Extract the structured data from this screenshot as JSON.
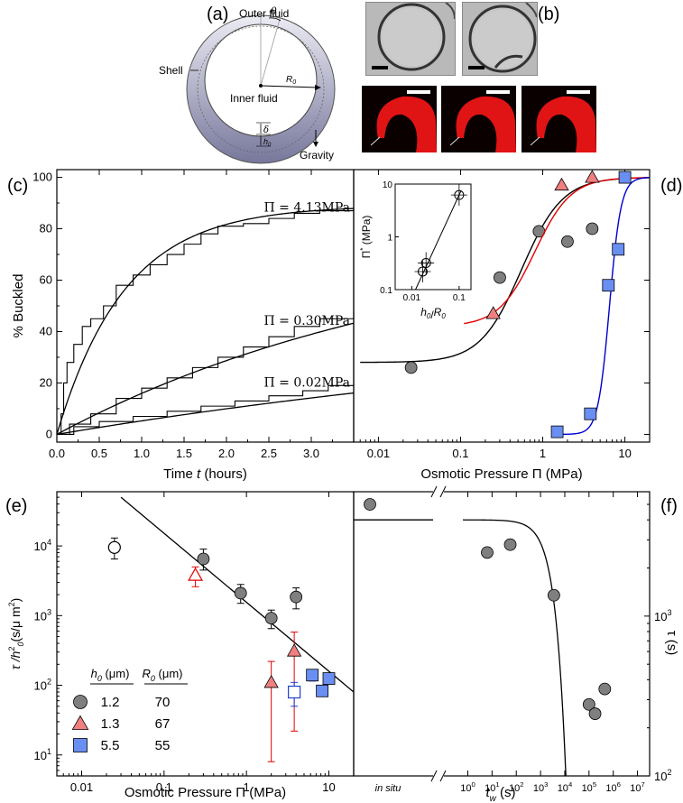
{
  "chart_data": [
    {
      "panel": "a",
      "type": "diagram",
      "label": "(a)",
      "annotations": {
        "outer_fluid": "Outer fluid",
        "shell": "Shell",
        "inner_fluid": "Inner fluid",
        "radius": "R",
        "radius_sub": "0",
        "delta": "δ",
        "h": "h",
        "h_sub": "0",
        "gravity": "Gravity",
        "theta": "θ"
      }
    },
    {
      "panel": "b",
      "type": "image",
      "label": "(b)",
      "arrow": "→"
    },
    {
      "panel": "c",
      "type": "line",
      "label": "(c)",
      "xlabel_pre": "Time ",
      "xlabel_var": "t",
      "xlabel_post": " (hours)",
      "ylabel": "% Buckled",
      "xlim": [
        0,
        3.5
      ],
      "ylim": [
        -3,
        103
      ],
      "xticks": [
        "0.0",
        "0.5",
        "1.0",
        "1.5",
        "2.0",
        "2.5",
        "3.0"
      ],
      "yticks": [
        "0",
        "20",
        "40",
        "60",
        "80",
        "100"
      ],
      "series": [
        {
          "name": "Π = 4.13MPa",
          "fit_tau_hours": 0.8,
          "fit_max": 89,
          "steps": [
            [
              0,
              0
            ],
            [
              0.05,
              8
            ],
            [
              0.08,
              20
            ],
            [
              0.12,
              28
            ],
            [
              0.2,
              35
            ],
            [
              0.3,
              42
            ],
            [
              0.4,
              45
            ],
            [
              0.55,
              50
            ],
            [
              0.7,
              58
            ],
            [
              0.9,
              62
            ],
            [
              1.1,
              66
            ],
            [
              1.3,
              70
            ],
            [
              1.5,
              74
            ],
            [
              1.7,
              78
            ],
            [
              1.9,
              81
            ],
            [
              2.2,
              82
            ],
            [
              2.5,
              84
            ],
            [
              2.8,
              86
            ],
            [
              3.1,
              87
            ],
            [
              3.5,
              88
            ]
          ]
        },
        {
          "name": "Π = 0.30MPa",
          "fit_tau_hours": 4.5,
          "fit_max": 80,
          "steps": [
            [
              0,
              0
            ],
            [
              0.15,
              4
            ],
            [
              0.4,
              8
            ],
            [
              0.7,
              14
            ],
            [
              1.0,
              18
            ],
            [
              1.3,
              22
            ],
            [
              1.6,
              26
            ],
            [
              1.9,
              30
            ],
            [
              2.2,
              34
            ],
            [
              2.5,
              38
            ],
            [
              2.8,
              42
            ],
            [
              3.1,
              45
            ],
            [
              3.5,
              48
            ]
          ]
        },
        {
          "name": "Π = 0.02MPa",
          "fit_tau_hours": 9.0,
          "fit_max": 50,
          "steps": [
            [
              0,
              0
            ],
            [
              0.2,
              3
            ],
            [
              0.5,
              5
            ],
            [
              0.9,
              7
            ],
            [
              1.3,
              9
            ],
            [
              1.7,
              11
            ],
            [
              2.1,
              13
            ],
            [
              2.5,
              15
            ],
            [
              2.9,
              17
            ],
            [
              3.2,
              19
            ],
            [
              3.5,
              20
            ]
          ]
        }
      ]
    },
    {
      "panel": "d",
      "type": "scatter",
      "label": "(d)",
      "xlabel": "Osmotic Pressure Π (MPa)",
      "xscale": "log",
      "xlim": [
        0.005,
        20
      ],
      "ylim": [
        -3,
        103
      ],
      "xticks": [
        "0.01",
        "0.1",
        "1",
        "10"
      ],
      "series": [
        {
          "name": "h0 1.2",
          "marker": "circle",
          "color": "#7f7f7f",
          "curve_color": "#000000",
          "x": [
            0.025,
            0.3,
            0.9,
            2.0,
            4.0
          ],
          "y": [
            26,
            61,
            79,
            75,
            80
          ],
          "fit": {
            "x0": 0.55,
            "width_decades": 0.25,
            "min": 28
          }
        },
        {
          "name": "h0 1.3",
          "marker": "triangle",
          "color": "#f08080",
          "curve_color": "#e00000",
          "x": [
            0.25,
            1.7,
            4.0
          ],
          "y": [
            47,
            97,
            100
          ],
          "fit": {
            "x0": 0.8,
            "width_decades": 0.22,
            "min": 42
          }
        },
        {
          "name": "h0 5.5",
          "marker": "square",
          "color": "#6a8ff2",
          "curve_color": "#0000d0",
          "x": [
            1.5,
            3.8,
            6.3,
            8.3,
            10.0
          ],
          "y": [
            1,
            8,
            58,
            72,
            100
          ],
          "fit": {
            "x0": 6.5,
            "width_decades": 0.07,
            "min": 0
          }
        }
      ],
      "inset": {
        "xlabel_var": "h",
        "xlabel_sub": "0",
        "xlabel_slash": "/",
        "xlabel_var2": "R",
        "xlabel_sub2": "0",
        "ylabel_var": "Π",
        "ylabel_sup": "*",
        "ylabel_unit": "(MPa)",
        "xticks": [
          "0.01",
          "0.1"
        ],
        "yticks": [
          "0.1",
          "1",
          "10"
        ],
        "x": [
          0.017,
          0.02,
          0.1
        ],
        "y": [
          0.22,
          0.32,
          6.2
        ]
      }
    },
    {
      "panel": "e",
      "type": "scatter",
      "label": "(e)",
      "xlabel": "Osmotic Pressure Π (MPa)",
      "ylabel_main": "τ /h",
      "ylabel_sup": "2",
      "ylabel_sub": "0",
      "ylabel_unit": "(s/μ m",
      "ylabel_unit_sup": "2",
      "ylabel_close": ")",
      "xscale": "log",
      "yscale": "log",
      "xlim": [
        0.005,
        20
      ],
      "ylim": [
        5,
        60000
      ],
      "xticks": [
        "0.01",
        "0.1",
        "1",
        "10"
      ],
      "yticks": [
        "10",
        "10",
        "10",
        "10"
      ],
      "ytick_exps": [
        "1",
        "2",
        "3",
        "4"
      ],
      "fit_line": [
        [
          0.03,
          50000
        ],
        [
          20,
          80
        ]
      ],
      "series": [
        {
          "name": "1.2",
          "R0": "70",
          "marker": "circle",
          "color": "#7f7f7f",
          "points": [
            [
              0.3,
              6500,
              4500,
              9000
            ],
            [
              0.85,
              2100,
              1500,
              2800
            ],
            [
              2.0,
              920,
              650,
              1200
            ],
            [
              4.0,
              1850,
              1250,
              2500
            ]
          ],
          "open_points": [
            [
              0.025,
              9500,
              6500,
              13000
            ]
          ]
        },
        {
          "name": "1.3",
          "R0": "67",
          "marker": "triangle",
          "color": "#f08080",
          "points": [
            [
              2.0,
              110,
              8,
              220
            ],
            [
              3.8,
              310,
              22,
              580
            ]
          ],
          "open_points": [
            [
              0.24,
              3800,
              2600,
              5000
            ]
          ]
        },
        {
          "name": "5.5",
          "R0": "55",
          "marker": "square",
          "color": "#6a8ff2",
          "points": [
            [
              6.3,
              140,
              115,
              160
            ],
            [
              8.3,
              83,
              72,
              95
            ],
            [
              10.0,
              125,
              105,
              145
            ]
          ],
          "open_points": [
            [
              3.8,
              80,
              50,
              110
            ]
          ]
        }
      ],
      "legend": {
        "h_var": "h",
        "h_sub": "0",
        "h_unit": "(μm)",
        "r_var": "R",
        "r_sub": "0",
        "r_unit": "(μm)"
      }
    },
    {
      "panel": "f",
      "type": "scatter",
      "label": "(f)",
      "xlabel_var": "t",
      "xlabel_sub": "w",
      "xlabel_unit": "(s)",
      "ylabel": "τ (s)",
      "yscale": "log",
      "ylim": [
        100,
        6000
      ],
      "yticks": [
        "10",
        "10"
      ],
      "ytick_exps": [
        "2",
        "3"
      ],
      "in_situ_label": "in situ",
      "in_situ_level": 4000,
      "in_situ_points": [
        5000
      ],
      "xticks": [
        "10",
        "10",
        "10",
        "10",
        "10",
        "10",
        "10",
        "10"
      ],
      "xtick_exps": [
        "0",
        "1",
        "2",
        "3",
        "4",
        "5",
        "6",
        "7"
      ],
      "xlim_log": [
        -0.8,
        7.5
      ],
      "x_log": [
        0.8,
        1.75,
        3.55,
        5.0,
        5.25,
        5.65
      ],
      "y": [
        2500,
        2800,
        1350,
        280,
        245,
        350
      ],
      "fit": {
        "tau0": 4000,
        "tw_c": 3000
      }
    }
  ]
}
